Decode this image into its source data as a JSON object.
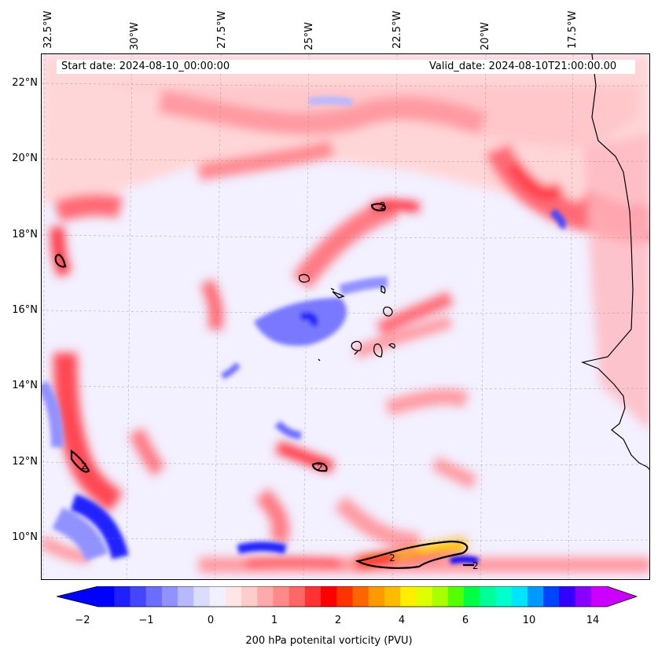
{
  "header": {
    "start_date": "Start date: 2024-08-10_00:00:00",
    "valid_date": "Valid_date: 2024-08-10T21:00:00.00"
  },
  "lon_labels": [
    "32.5°W",
    "30°W",
    "27.5°W",
    "25°W",
    "22.5°W",
    "20°W",
    "17.5°W"
  ],
  "lat_labels": [
    "22°N",
    "20°N",
    "18°N",
    "16°N",
    "14°N",
    "12°N",
    "10°N"
  ],
  "colorbar": {
    "label": "200 hPa potenital vorticity (PVU)",
    "tick_labels": [
      "−2",
      "−1",
      "0",
      "1",
      "2",
      "4",
      "6",
      "10",
      "14"
    ],
    "colors": [
      "#0000ff",
      "#2020ff",
      "#4646ff",
      "#6c6cff",
      "#9292ff",
      "#b8b8ff",
      "#dcdcff",
      "#f0f0ff",
      "#ffe6e6",
      "#ffcccc",
      "#ffaaaa",
      "#ff8888",
      "#ff6666",
      "#ff3333",
      "#ff0000",
      "#ff3300",
      "#ff6600",
      "#ff9900",
      "#ffbb00",
      "#ffee00",
      "#ddff00",
      "#aaff00",
      "#55ff00",
      "#00ff44",
      "#00ff99",
      "#00ffcc",
      "#00e5ff",
      "#0099ff",
      "#0044ff",
      "#3300ff",
      "#8800ff",
      "#cc00ff"
    ],
    "under_color": "#0000ff",
    "over_color": "#cc00ff"
  },
  "contour_labels": [
    "2",
    "2",
    "2",
    "2",
    "2"
  ],
  "map": {
    "projection": "Lambert",
    "extent_lon": [
      -32.5,
      -15.5
    ],
    "extent_lat": [
      8.8,
      22.8
    ]
  }
}
